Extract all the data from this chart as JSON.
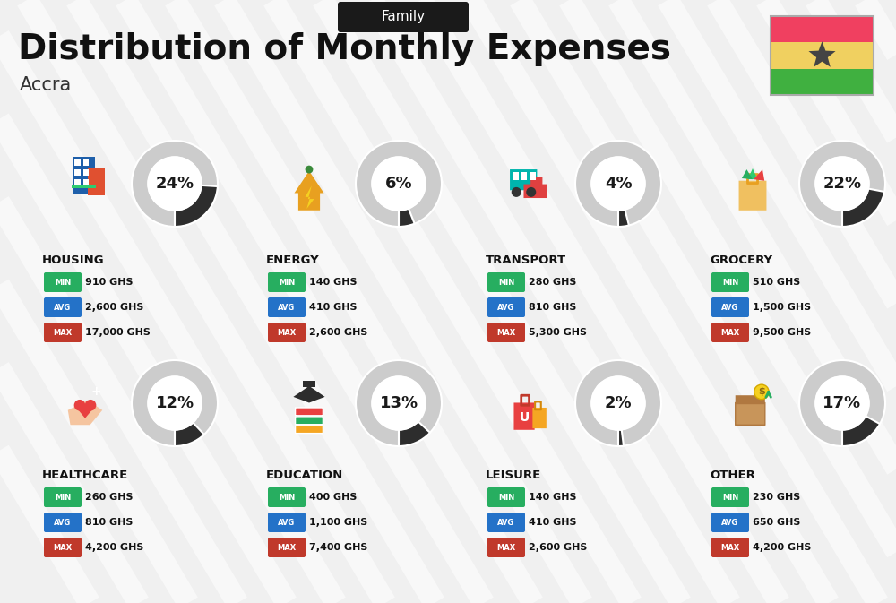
{
  "title": "Distribution of Monthly Expenses",
  "subtitle": "Family",
  "city": "Accra",
  "background_color": "#f0f0f0",
  "categories": [
    {
      "name": "HOUSING",
      "percent": 24,
      "min": "910 GHS",
      "avg": "2,600 GHS",
      "max": "17,000 GHS",
      "col": 0,
      "row": 0
    },
    {
      "name": "ENERGY",
      "percent": 6,
      "min": "140 GHS",
      "avg": "410 GHS",
      "max": "2,600 GHS",
      "col": 1,
      "row": 0
    },
    {
      "name": "TRANSPORT",
      "percent": 4,
      "min": "280 GHS",
      "avg": "810 GHS",
      "max": "5,300 GHS",
      "col": 2,
      "row": 0
    },
    {
      "name": "GROCERY",
      "percent": 22,
      "min": "510 GHS",
      "avg": "1,500 GHS",
      "max": "9,500 GHS",
      "col": 3,
      "row": 0
    },
    {
      "name": "HEALTHCARE",
      "percent": 12,
      "min": "260 GHS",
      "avg": "810 GHS",
      "max": "4,200 GHS",
      "col": 0,
      "row": 1
    },
    {
      "name": "EDUCATION",
      "percent": 13,
      "min": "400 GHS",
      "avg": "1,100 GHS",
      "max": "7,400 GHS",
      "col": 1,
      "row": 1
    },
    {
      "name": "LEISURE",
      "percent": 2,
      "min": "140 GHS",
      "avg": "410 GHS",
      "max": "2,600 GHS",
      "col": 2,
      "row": 1
    },
    {
      "name": "OTHER",
      "percent": 17,
      "min": "230 GHS",
      "avg": "650 GHS",
      "max": "4,200 GHS",
      "col": 3,
      "row": 1
    }
  ],
  "label_colors": {
    "MIN": "#27ae60",
    "AVG": "#2472c8",
    "MAX": "#c0392b"
  },
  "donut_dark": "#2d2d2d",
  "donut_bg": "#cccccc",
  "ghana_flag": {
    "red": "#f04060",
    "gold": "#f0d060",
    "green": "#40b040",
    "star": "#444444"
  },
  "diagonal_color": "#e8e8e8",
  "family_box_color": "#1a1a1a",
  "title_color": "#111111",
  "city_color": "#333333",
  "cat_name_color": "#111111",
  "value_color": "#111111"
}
